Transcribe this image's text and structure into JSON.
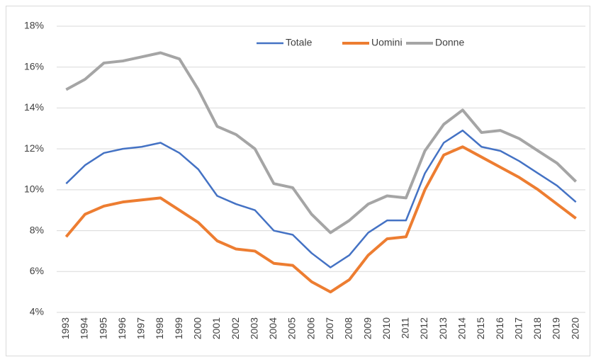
{
  "chart_data": {
    "type": "line",
    "x": [
      "1993",
      "1994",
      "1995",
      "1996",
      "1997",
      "1998",
      "1999",
      "2000",
      "2001",
      "2002",
      "2003",
      "2004",
      "2005",
      "2006",
      "2007",
      "2008",
      "2009",
      "2010",
      "2011",
      "2012",
      "2013",
      "2014",
      "2015",
      "2016",
      "2017",
      "2018",
      "2019",
      "2020"
    ],
    "series": [
      {
        "name": "Totale",
        "color": "#4472c4",
        "values": [
          10.3,
          11.2,
          11.8,
          12.0,
          12.1,
          12.3,
          11.8,
          11.0,
          9.7,
          9.3,
          9.0,
          8.0,
          7.8,
          6.9,
          6.2,
          6.8,
          7.9,
          8.5,
          8.5,
          10.8,
          12.3,
          12.9,
          12.1,
          11.9,
          11.4,
          10.8,
          10.2,
          9.4
        ]
      },
      {
        "name": "Uomini",
        "color": "#ed7d31",
        "values": [
          7.7,
          8.8,
          9.2,
          9.4,
          9.5,
          9.6,
          9.0,
          8.4,
          7.5,
          7.1,
          7.0,
          6.4,
          6.3,
          5.5,
          5.0,
          5.6,
          6.8,
          7.6,
          7.7,
          10.0,
          11.7,
          12.1,
          11.6,
          11.1,
          10.6,
          10.0,
          9.3,
          8.6
        ]
      },
      {
        "name": "Donne",
        "color": "#a5a5a5",
        "values": [
          14.9,
          15.4,
          16.2,
          16.3,
          16.5,
          16.7,
          16.4,
          14.9,
          13.1,
          12.7,
          12.0,
          10.3,
          10.1,
          8.8,
          7.9,
          8.5,
          9.3,
          9.7,
          9.6,
          11.9,
          13.2,
          13.9,
          12.8,
          12.9,
          12.5,
          11.9,
          11.3,
          10.4
        ]
      }
    ],
    "ylim": [
      4,
      18
    ],
    "yticks": [
      {
        "value": 4,
        "label": "4%"
      },
      {
        "value": 6,
        "label": "6%"
      },
      {
        "value": 8,
        "label": "8%"
      },
      {
        "value": 10,
        "label": "10%"
      },
      {
        "value": 12,
        "label": "12%"
      },
      {
        "value": 14,
        "label": "14%"
      },
      {
        "value": 16,
        "label": "16%"
      },
      {
        "value": 18,
        "label": "18%"
      }
    ],
    "grid": true,
    "legend": "top"
  }
}
